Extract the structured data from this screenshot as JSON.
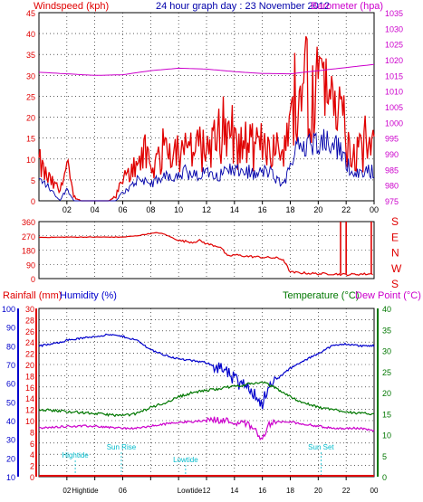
{
  "title": "24 hour graph day : 23 November 2012",
  "colors": {
    "wind": "#e00000",
    "gust_line": "#0000aa",
    "baro": "#cc00cc",
    "direction": "#e00000",
    "rain": "#e00000",
    "humidity": "#0000cc",
    "temperature": "#007700",
    "dewpoint": "#cc00cc",
    "tide": "#00bbcc",
    "frame": "#000000",
    "grid": "#000000"
  },
  "chart_data": [
    {
      "type": "line",
      "panel": "wind-baro",
      "title": "",
      "left_axis_label": "Windspeed (kph)",
      "right_axis_label": "Barometer (hpa)",
      "left_ylim": [
        0,
        45
      ],
      "left_ticks": [
        "0",
        "5",
        "10",
        "15",
        "20",
        "25",
        "30",
        "35",
        "40",
        "45"
      ],
      "right_ylim": [
        975,
        1035
      ],
      "right_ticks": [
        "975",
        "980",
        "985",
        "990",
        "995",
        "1000",
        "1005",
        "1010",
        "1015",
        "1020",
        "1025",
        "1030",
        "1035"
      ],
      "x_ticks": [
        "02",
        "04",
        "06",
        "08",
        "10",
        "12",
        "14",
        "16",
        "18",
        "20",
        "22",
        "00"
      ],
      "series": [
        {
          "key": "wind",
          "hours": [
            0,
            0.5,
            1,
            1.5,
            2,
            2.5,
            3,
            3.5,
            4,
            4.5,
            5,
            5.5,
            6,
            6.5,
            7,
            7.5,
            8,
            8.5,
            9,
            9.5,
            10,
            10.5,
            11,
            11.5,
            12,
            12.5,
            13,
            13.5,
            14,
            14.5,
            15,
            15.5,
            16,
            16.5,
            17,
            17.5,
            18,
            18.5,
            19,
            19.5,
            20,
            20.5,
            21,
            21.5,
            22,
            22.5,
            23,
            23.5,
            24
          ],
          "values": [
            9,
            6,
            4,
            2,
            8,
            1,
            0,
            0,
            0,
            0,
            0,
            1,
            5,
            6,
            10,
            12,
            7,
            10,
            12,
            13,
            12,
            13,
            12,
            12,
            13,
            14,
            13,
            15,
            13,
            13,
            14,
            12,
            14,
            14,
            12,
            10,
            16,
            25,
            26,
            24,
            28,
            25,
            26,
            22,
            14,
            12,
            11,
            12,
            12
          ]
        },
        {
          "key": "gust",
          "hours": [
            0,
            0.5,
            1,
            1.5,
            2,
            2.5,
            3,
            3.5,
            4,
            4.5,
            5,
            5.5,
            6,
            6.5,
            7,
            7.5,
            8,
            8.5,
            9,
            9.5,
            10,
            10.5,
            11,
            11.5,
            12,
            12.5,
            13,
            13.5,
            14,
            14.5,
            15,
            15.5,
            16,
            16.5,
            17,
            17.5,
            18,
            18.5,
            19,
            19.5,
            20,
            20.5,
            21,
            21.5,
            22,
            22.5,
            23,
            23.5,
            24
          ],
          "values": [
            5,
            4,
            2,
            0,
            3,
            0,
            0,
            0,
            0,
            0,
            0,
            0,
            2,
            3,
            5,
            5,
            4,
            5,
            6,
            6,
            6,
            7,
            6,
            6,
            7,
            7,
            6,
            8,
            7,
            7,
            7,
            6,
            7,
            7,
            5,
            4,
            8,
            14,
            14,
            13,
            15,
            14,
            15,
            12,
            9,
            7,
            6,
            7,
            7
          ]
        },
        {
          "key": "baro",
          "hours": [
            0,
            2,
            4,
            6,
            8,
            10,
            12,
            14,
            16,
            18,
            20,
            22,
            24
          ],
          "values": [
            1016,
            1015.5,
            1015,
            1015.2,
            1016.5,
            1017.3,
            1017,
            1016.2,
            1015.6,
            1015.5,
            1016.5,
            1017.5,
            1018.5
          ]
        }
      ]
    },
    {
      "type": "line",
      "panel": "direction",
      "title": "",
      "ylim": [
        0,
        360
      ],
      "y_ticks": [
        "0",
        "90",
        "180",
        "270",
        "360"
      ],
      "compass_labels": [
        "S",
        "E",
        "N",
        "W",
        "S"
      ],
      "series": [
        {
          "key": "direction",
          "hours": [
            0,
            2,
            4,
            6,
            7,
            8,
            8.5,
            9,
            10,
            11,
            11.5,
            12,
            13,
            13.5,
            14,
            15,
            16,
            17,
            17.5,
            18,
            19,
            20,
            21,
            22,
            23,
            24
          ],
          "values": [
            260,
            262,
            262,
            262,
            270,
            285,
            290,
            280,
            240,
            230,
            240,
            220,
            200,
            140,
            150,
            140,
            135,
            130,
            120,
            40,
            35,
            30,
            30,
            25,
            28,
            30
          ]
        }
      ],
      "spikes_hours": [
        21.6,
        22.0,
        23.8
      ]
    },
    {
      "type": "line",
      "panel": "rain-humidity-temp",
      "title": "",
      "rain_label": "Rainfall (mm)",
      "humidity_label": "Humidity (%)",
      "temperature_label": "Temperature (°C)",
      "dewpoint_label": "Dew Point (°C)",
      "humidity_ticks": [
        "10",
        "20",
        "30",
        "40",
        "50",
        "60",
        "70",
        "80",
        "90",
        "100"
      ],
      "rain_ticks": [
        "0",
        "2",
        "4",
        "6",
        "8",
        "10",
        "12",
        "14",
        "16",
        "18",
        "20",
        "22",
        "24",
        "26",
        "28",
        "30"
      ],
      "temp_ticks": [
        "0",
        "5",
        "10",
        "15",
        "20",
        "25",
        "30",
        "35",
        "40"
      ],
      "humidity_ylim": [
        10,
        100
      ],
      "temp_ylim": [
        0,
        40
      ],
      "series": [
        {
          "key": "humidity",
          "hours": [
            0,
            1,
            2,
            3,
            4,
            5,
            6,
            7,
            8,
            9,
            10,
            11,
            12,
            13,
            14,
            14.5,
            15,
            15.5,
            16,
            16.5,
            17,
            18,
            19,
            20,
            21,
            22,
            23,
            24
          ],
          "values": [
            80,
            81,
            83,
            84,
            85,
            86,
            85,
            83,
            78,
            75,
            73,
            72,
            71,
            68,
            62,
            58,
            60,
            53,
            50,
            57,
            62,
            68,
            72,
            76,
            80,
            81,
            80,
            80
          ]
        },
        {
          "key": "temperature",
          "hours": [
            0,
            2,
            4,
            6,
            7,
            8,
            9,
            10,
            11,
            12,
            13,
            14,
            15,
            16,
            17,
            18,
            19,
            20,
            21,
            22,
            23,
            24
          ],
          "values": [
            16,
            15.5,
            15,
            14.5,
            15,
            16.5,
            17.5,
            19,
            20,
            20.5,
            21,
            21.5,
            22,
            22.5,
            21,
            19,
            17.5,
            16.5,
            16,
            15.5,
            15,
            15
          ]
        },
        {
          "key": "dewpoint",
          "hours": [
            0,
            2,
            4,
            6,
            7,
            8,
            9,
            10,
            11,
            12,
            13,
            14,
            15,
            15.5,
            16,
            16.5,
            17,
            18,
            19,
            20,
            21,
            22,
            23,
            24
          ],
          "values": [
            11.5,
            12,
            12,
            11.5,
            11.5,
            12,
            12.5,
            13,
            13,
            13.5,
            13.5,
            13,
            12.5,
            11,
            9,
            12.5,
            13,
            13,
            12.5,
            12,
            11.5,
            11.5,
            11.5,
            11
          ]
        },
        {
          "key": "rain",
          "hours": [
            0,
            24
          ],
          "values": [
            0,
            0
          ]
        }
      ],
      "events": [
        {
          "label": "Hightide",
          "hour": 2.6
        },
        {
          "label": "Sun Rise",
          "hour": 5.9
        },
        {
          "label": "Lowtide",
          "hour": 10.5
        },
        {
          "label": "Sun Set",
          "hour": 20.2
        }
      ],
      "x_ticks": [
        "02",
        "Hightide",
        "06",
        "Lowtide",
        "12",
        "14",
        "16",
        "18",
        "20",
        "22",
        "00"
      ]
    }
  ]
}
